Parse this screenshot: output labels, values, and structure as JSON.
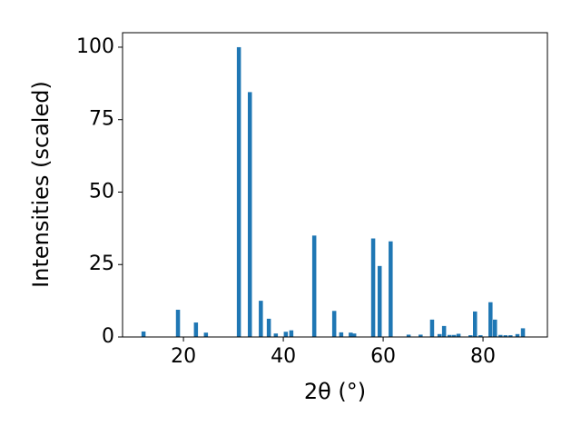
{
  "chart_data": {
    "type": "bar",
    "xlabel": "2θ (°)",
    "ylabel": "Intensities (scaled)",
    "x": [
      12.0,
      18.9,
      22.5,
      24.5,
      31.1,
      33.3,
      35.5,
      37.1,
      38.5,
      40.5,
      41.6,
      46.2,
      50.2,
      51.6,
      53.5,
      54.2,
      58.0,
      59.3,
      61.5,
      65.1,
      67.5,
      69.8,
      71.3,
      72.2,
      73.3,
      74.2,
      75.1,
      77.5,
      78.4,
      79.5,
      81.5,
      82.4,
      83.5,
      84.5,
      85.5,
      86.9,
      88.0
    ],
    "values": [
      1.9,
      9.4,
      5,
      1.5,
      100,
      84.5,
      12.5,
      6.3,
      1.2,
      1.8,
      2.3,
      35,
      9,
      1.6,
      1.5,
      1.2,
      34,
      24.5,
      33,
      0.8,
      0.8,
      6,
      1,
      3.8,
      0.7,
      0.7,
      1.1,
      0.6,
      8.8,
      0.6,
      12,
      6,
      0.7,
      0.6,
      0.6,
      1,
      3
    ],
    "color": "#1f77b4",
    "xlim": [
      7.8,
      92.9
    ],
    "xticks": [
      20,
      40,
      60,
      80
    ],
    "ylim": [
      0,
      105
    ],
    "yticks": [
      0,
      25,
      50,
      75,
      100
    ]
  }
}
